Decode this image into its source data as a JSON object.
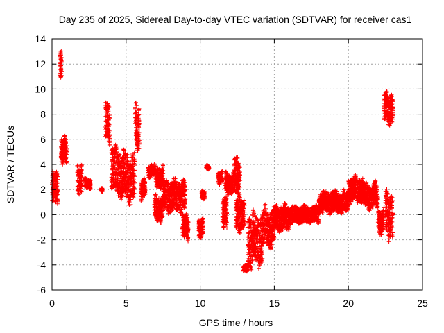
{
  "chart_data": {
    "type": "scatter",
    "title": "Day 235 of 2025, Sidereal Day-to-day VTEC variation (SDTVAR) for receiver cas1",
    "xlabel": "GPS time / hours",
    "ylabel": "SDTVAR / TECUs",
    "xlim": [
      0,
      25
    ],
    "ylim": [
      -6,
      14
    ],
    "xticks": [
      0,
      5,
      10,
      15,
      20,
      25
    ],
    "yticks": [
      -6,
      -4,
      -2,
      0,
      2,
      4,
      6,
      8,
      10,
      12,
      14
    ],
    "grid": true,
    "marker": "+",
    "color": "#ff0000",
    "segments": [
      {
        "t0": 0.0,
        "t1": 0.4,
        "center": 2.0,
        "spread": 1.6
      },
      {
        "t0": 0.55,
        "t1": 0.65,
        "center": 12.0,
        "spread": 1.4
      },
      {
        "t0": 0.6,
        "t1": 1.0,
        "center": 5.0,
        "spread": 1.3
      },
      {
        "t0": 1.7,
        "t1": 2.0,
        "center": 3.0,
        "spread": 1.5
      },
      {
        "t0": 2.2,
        "t1": 2.6,
        "center": 2.5,
        "spread": 0.5
      },
      {
        "t0": 3.3,
        "t1": 3.4,
        "center": 2.0,
        "spread": 0.2
      },
      {
        "t0": 3.6,
        "t1": 3.9,
        "center": 7.5,
        "spread": 2.0
      },
      {
        "t0": 4.0,
        "t1": 4.6,
        "center": 3.5,
        "spread": 2.2
      },
      {
        "t0": 4.6,
        "t1": 5.6,
        "center": 3.0,
        "spread": 2.3
      },
      {
        "t0": 5.6,
        "t1": 5.9,
        "center": 7.0,
        "spread": 2.2
      },
      {
        "t0": 6.0,
        "t1": 6.3,
        "center": 2.0,
        "spread": 1.0
      },
      {
        "t0": 6.5,
        "t1": 6.9,
        "center": 3.5,
        "spread": 0.6
      },
      {
        "t0": 6.9,
        "t1": 7.5,
        "center": 0.5,
        "spread": 1.2
      },
      {
        "t0": 7.0,
        "t1": 7.5,
        "center": 3.0,
        "spread": 1.0
      },
      {
        "t0": 7.5,
        "t1": 9.0,
        "center": 1.5,
        "spread": 1.5
      },
      {
        "t0": 8.8,
        "t1": 9.2,
        "center": -1.0,
        "spread": 1.2
      },
      {
        "t0": 9.9,
        "t1": 10.2,
        "center": -1.0,
        "spread": 1.0
      },
      {
        "t0": 10.1,
        "t1": 10.3,
        "center": 1.5,
        "spread": 0.5
      },
      {
        "t0": 10.4,
        "t1": 10.6,
        "center": 3.8,
        "spread": 0.2
      },
      {
        "t0": 11.2,
        "t1": 11.5,
        "center": 3.0,
        "spread": 0.6
      },
      {
        "t0": 11.5,
        "t1": 11.8,
        "center": 0.0,
        "spread": 1.5
      },
      {
        "t0": 11.7,
        "t1": 12.3,
        "center": 2.5,
        "spread": 1.0
      },
      {
        "t0": 12.3,
        "t1": 12.7,
        "center": 3.0,
        "spread": 2.0
      },
      {
        "t0": 12.4,
        "t1": 13.0,
        "center": 0.0,
        "spread": 1.5
      },
      {
        "t0": 12.9,
        "t1": 13.2,
        "center": -4.3,
        "spread": 0.3
      },
      {
        "t0": 13.2,
        "t1": 14.2,
        "center": -2.0,
        "spread": 2.5
      },
      {
        "t0": 14.2,
        "t1": 15.0,
        "center": -1.0,
        "spread": 1.8
      },
      {
        "t0": 15.0,
        "t1": 16.0,
        "center": -0.3,
        "spread": 1.2
      },
      {
        "t0": 16.0,
        "t1": 18.0,
        "center": 0.0,
        "spread": 0.8
      },
      {
        "t0": 18.0,
        "t1": 20.0,
        "center": 1.0,
        "spread": 1.0
      },
      {
        "t0": 20.0,
        "t1": 21.0,
        "center": 2.0,
        "spread": 1.2
      },
      {
        "t0": 21.0,
        "t1": 22.0,
        "center": 1.5,
        "spread": 1.2
      },
      {
        "t0": 22.0,
        "t1": 22.4,
        "center": -0.5,
        "spread": 1.2
      },
      {
        "t0": 22.4,
        "t1": 23.0,
        "center": 8.5,
        "spread": 1.5
      },
      {
        "t0": 22.5,
        "t1": 23.0,
        "center": 0.0,
        "spread": 2.2
      }
    ]
  }
}
